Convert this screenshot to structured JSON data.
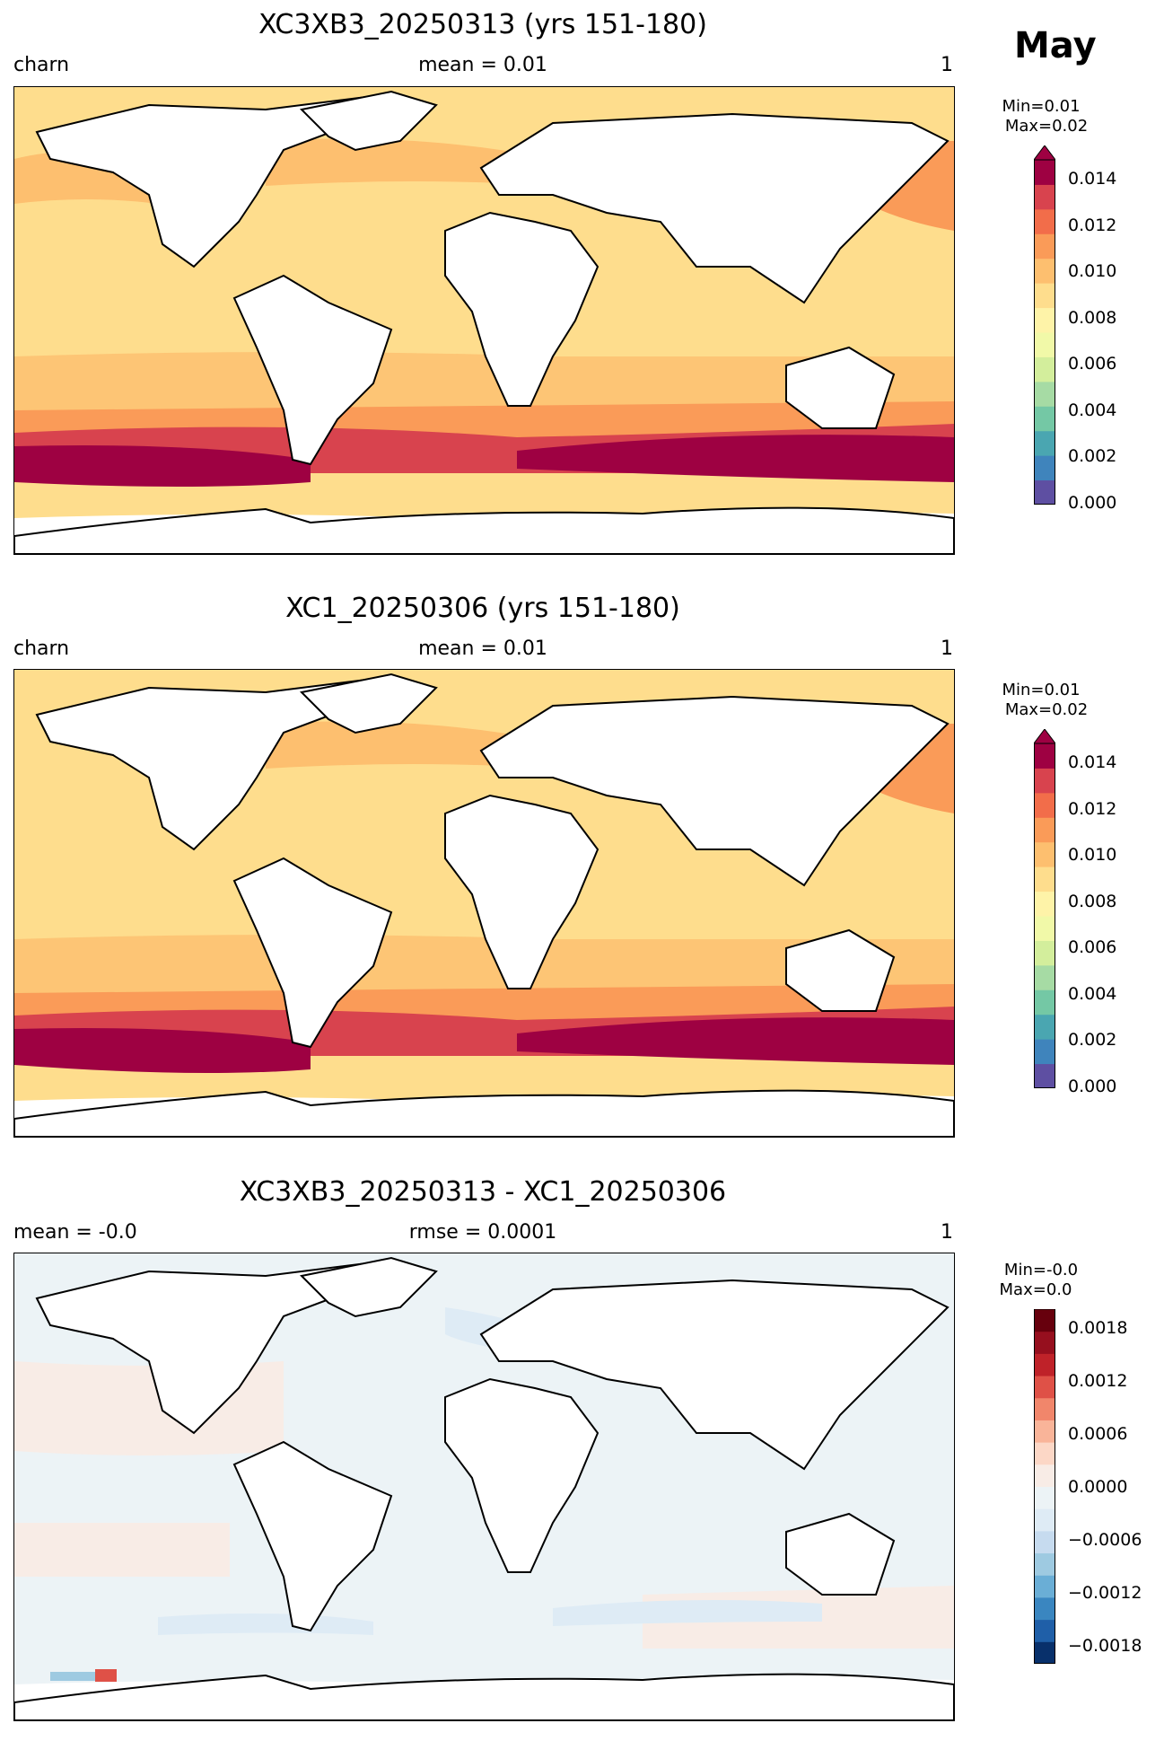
{
  "month_label": "May",
  "panels": [
    {
      "title": "XC3XB3_20250313 (yrs 151-180)",
      "left_label": "charn",
      "center_label": "mean = 0.01",
      "right_label": "1",
      "colorbar": {
        "min_label": "Min=0.01",
        "max_label": "Max=0.02",
        "ticks": [
          "0.014",
          "0.012",
          "0.010",
          "0.008",
          "0.006",
          "0.004",
          "0.002",
          "0.000"
        ],
        "colors": [
          "#5e4fa2",
          "#3f84bc",
          "#4aa6b1",
          "#74c8a5",
          "#a6dba4",
          "#d3ee9c",
          "#f1f9a8",
          "#fef3a8",
          "#fedd8d",
          "#fdbf6f",
          "#fa9b58",
          "#f26d4a",
          "#d8434e",
          "#9e0142"
        ]
      }
    },
    {
      "title": "XC1_20250306 (yrs 151-180)",
      "left_label": "charn",
      "center_label": "mean = 0.01",
      "right_label": "1",
      "colorbar": {
        "min_label": "Min=0.01",
        "max_label": "Max=0.02",
        "ticks": [
          "0.014",
          "0.012",
          "0.010",
          "0.008",
          "0.006",
          "0.004",
          "0.002",
          "0.000"
        ],
        "colors": [
          "#5e4fa2",
          "#3f84bc",
          "#4aa6b1",
          "#74c8a5",
          "#a6dba4",
          "#d3ee9c",
          "#f1f9a8",
          "#fef3a8",
          "#fedd8d",
          "#fdbf6f",
          "#fa9b58",
          "#f26d4a",
          "#d8434e",
          "#9e0142"
        ]
      }
    },
    {
      "title": "XC3XB3_20250313 - XC1_20250306",
      "left_label": "mean = -0.0",
      "center_label": "rmse = 0.0001",
      "right_label": "1",
      "colorbar": {
        "min_label": "Min=-0.0",
        "max_label": "Max=0.0",
        "ticks": [
          "0.0018",
          "0.0012",
          "0.0006",
          "0.0000",
          "−0.0006",
          "−0.0012",
          "−0.0018"
        ],
        "colors": [
          "#08306b",
          "#1f5fa8",
          "#3a86c0",
          "#6aaed6",
          "#9ecae1",
          "#c6dbef",
          "#deebf5",
          "#ecf3f6",
          "#f8ece6",
          "#fcd7c6",
          "#f9b499",
          "#f1866b",
          "#df5147",
          "#bf2229",
          "#960f1e",
          "#67000d"
        ]
      }
    }
  ]
}
